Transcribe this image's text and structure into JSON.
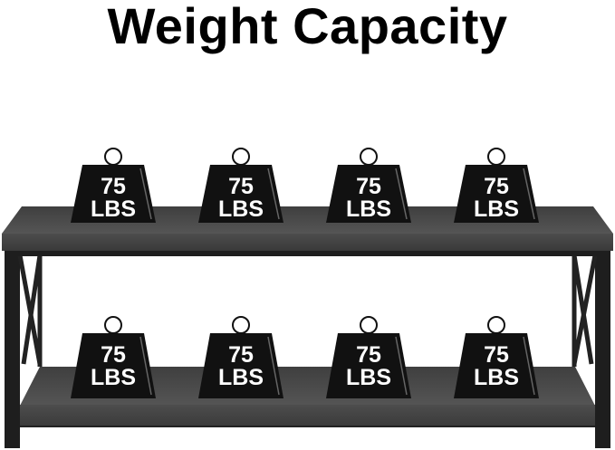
{
  "title": "Weight Capacity",
  "weights": {
    "top_shelf": [
      {
        "value": "75",
        "unit": "LBS"
      },
      {
        "value": "75",
        "unit": "LBS"
      },
      {
        "value": "75",
        "unit": "LBS"
      },
      {
        "value": "75",
        "unit": "LBS"
      }
    ],
    "bottom_shelf": [
      {
        "value": "75",
        "unit": "LBS"
      },
      {
        "value": "75",
        "unit": "LBS"
      },
      {
        "value": "75",
        "unit": "LBS"
      },
      {
        "value": "75",
        "unit": "LBS"
      }
    ]
  },
  "colors": {
    "wood": "#4a4a4a",
    "frame": "#1c1c1c",
    "weight": "#111111",
    "text": "#ffffff"
  }
}
